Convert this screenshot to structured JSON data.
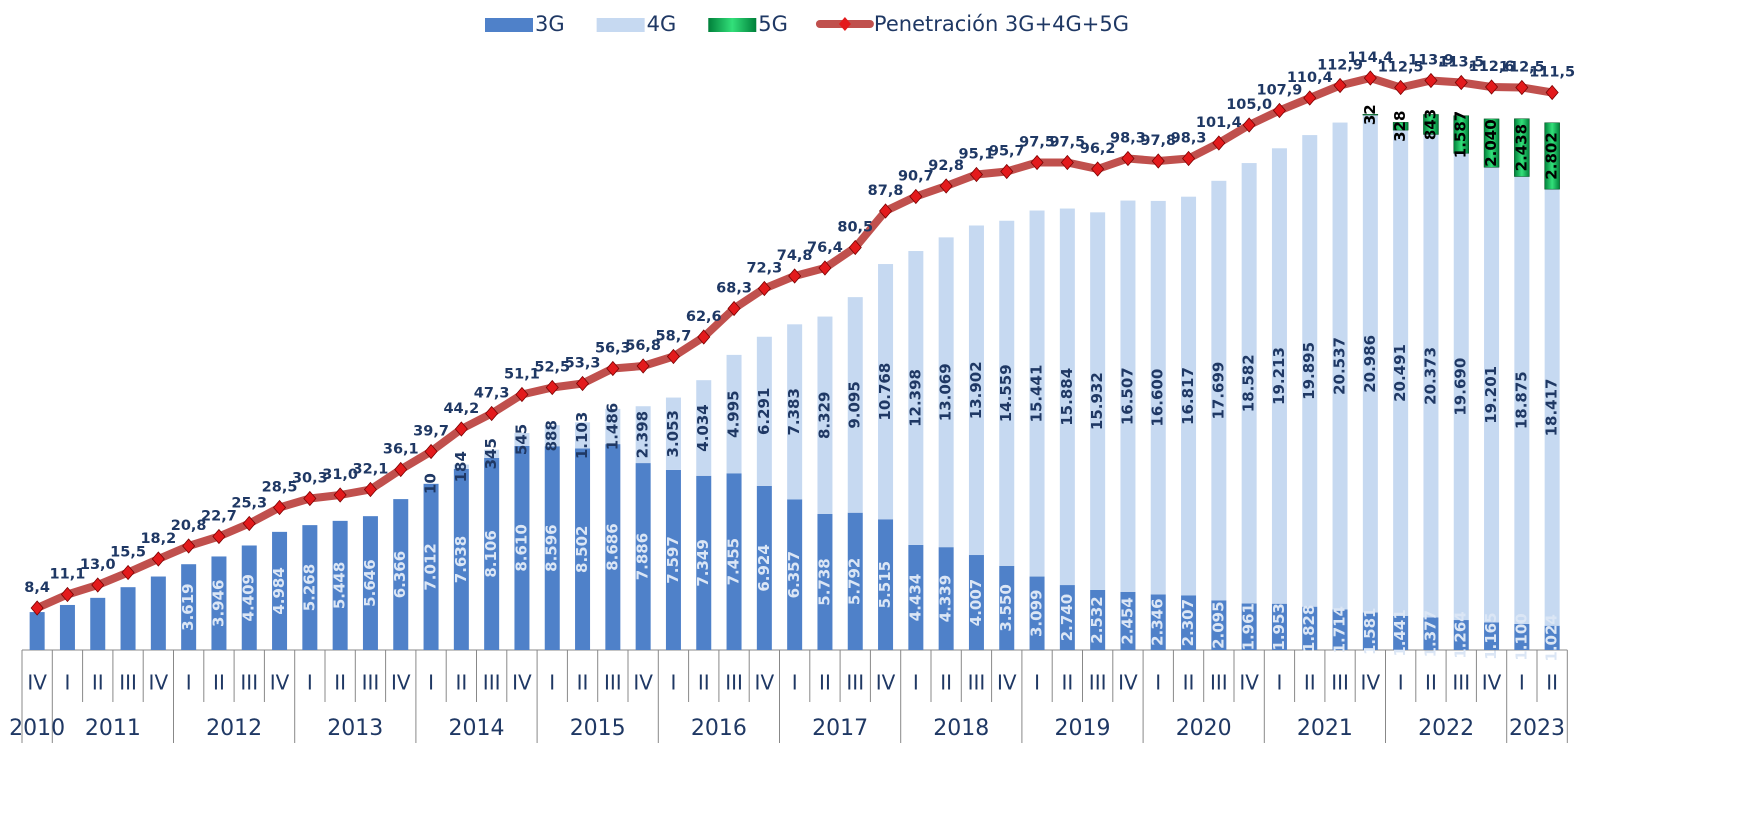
{
  "chart_data": {
    "type": "bar",
    "stacked": true,
    "categories": [
      "IV",
      "I",
      "II",
      "III",
      "IV",
      "I",
      "II",
      "III",
      "IV",
      "I",
      "II",
      "III",
      "IV",
      "I",
      "II",
      "III",
      "IV",
      "I",
      "II",
      "III",
      "IV",
      "I",
      "II",
      "III",
      "IV",
      "I",
      "II",
      "III",
      "IV",
      "I",
      "II",
      "III",
      "IV",
      "I",
      "II",
      "III",
      "IV",
      "I",
      "II",
      "III",
      "IV",
      "I",
      "II",
      "III",
      "IV",
      "I",
      "II",
      "III",
      "IV",
      "I",
      "II"
    ],
    "x_groups": [
      {
        "label": "2010",
        "count": 1
      },
      {
        "label": "2011",
        "count": 4
      },
      {
        "label": "2012",
        "count": 4
      },
      {
        "label": "2013",
        "count": 4
      },
      {
        "label": "2014",
        "count": 4
      },
      {
        "label": "2015",
        "count": 4
      },
      {
        "label": "2016",
        "count": 4
      },
      {
        "label": "2017",
        "count": 4
      },
      {
        "label": "2018",
        "count": 4
      },
      {
        "label": "2019",
        "count": 4
      },
      {
        "label": "2020",
        "count": 4
      },
      {
        "label": "2021",
        "count": 4
      },
      {
        "label": "2022",
        "count": 4
      },
      {
        "label": "2023",
        "count": 2
      }
    ],
    "ylim": [
      0,
      27000
    ],
    "y2lim": [
      0,
      128
    ],
    "legend": "top",
    "series": [
      {
        "name": "3G",
        "color": "#4f81c9",
        "values": [
          1600,
          1900,
          2200,
          2650,
          3100,
          3619,
          3946,
          4409,
          4984,
          5268,
          5448,
          5646,
          6366,
          7012,
          7638,
          8106,
          8610,
          8596,
          8502,
          8686,
          7886,
          7597,
          7349,
          7455,
          6924,
          6357,
          5738,
          5792,
          5515,
          4434,
          4339,
          4007,
          3550,
          3099,
          2740,
          2532,
          2454,
          2346,
          2307,
          2095,
          1961,
          1953,
          1828,
          1714,
          1581,
          1441,
          1377,
          1264,
          1165,
          1100,
          1024
        ],
        "value_labels": [
          null,
          null,
          null,
          null,
          null,
          "3.619",
          "3.946",
          "4.409",
          "4.984",
          "5.268",
          "5.448",
          "5.646",
          "6.366",
          "7.012",
          "7.638",
          "8.106",
          "8.610",
          "8.596",
          "8.502",
          "8.686",
          "7.886",
          "7.597",
          "7.349",
          "7.455",
          "6.924",
          "6.357",
          "5.738",
          "5.792",
          "5.515",
          "4.434",
          "4.339",
          "4.007",
          "3.550",
          "3.099",
          "2.740",
          "2.532",
          "2.454",
          "2.346",
          "2.307",
          "2.095",
          "1.961",
          "1.953",
          "1.828",
          "1.714",
          "1.581",
          "1.441",
          "1.377",
          "1.264",
          "1.165",
          "1.100",
          "1.024"
        ]
      },
      {
        "name": "4G",
        "color": "#c6d9f1",
        "values": [
          null,
          null,
          null,
          null,
          null,
          null,
          null,
          null,
          null,
          null,
          null,
          null,
          null,
          10,
          184,
          345,
          545,
          888,
          1103,
          1486,
          2398,
          3053,
          4034,
          4995,
          6291,
          7383,
          8329,
          9095,
          10768,
          12398,
          13069,
          13902,
          14559,
          15441,
          15884,
          15932,
          16507,
          16600,
          16817,
          17699,
          18582,
          19213,
          19895,
          20537,
          20986,
          20491,
          20373,
          19690,
          19201,
          18875,
          18417
        ],
        "value_labels": [
          null,
          null,
          null,
          null,
          null,
          null,
          null,
          null,
          null,
          null,
          null,
          null,
          null,
          "10",
          "184",
          "345",
          "545",
          "888",
          "1.103",
          "1.486",
          "2.398",
          "3.053",
          "4.034",
          "4.995",
          "6.291",
          "7.383",
          "8.329",
          "9.095",
          "10.768",
          "12.398",
          "13.069",
          "13.902",
          "14.559",
          "15.441",
          "15.884",
          "15.932",
          "16.507",
          "16.600",
          "16.817",
          "17.699",
          "18.582",
          "19.213",
          "19.895",
          "20.537",
          "20.986",
          "20.491",
          "20.373",
          "19.690",
          "19.201",
          "18.875",
          "18.417"
        ]
      },
      {
        "name": "5G",
        "color": "#00b050",
        "values": [
          null,
          null,
          null,
          null,
          null,
          null,
          null,
          null,
          null,
          null,
          null,
          null,
          null,
          null,
          null,
          null,
          null,
          null,
          null,
          null,
          null,
          null,
          null,
          null,
          null,
          null,
          null,
          null,
          null,
          null,
          null,
          null,
          null,
          null,
          null,
          null,
          null,
          null,
          null,
          null,
          null,
          null,
          null,
          null,
          32,
          328,
          843,
          1587,
          2040,
          2438,
          2802
        ],
        "value_labels": [
          null,
          null,
          null,
          null,
          null,
          null,
          null,
          null,
          null,
          null,
          null,
          null,
          null,
          null,
          null,
          null,
          null,
          null,
          null,
          null,
          null,
          null,
          null,
          null,
          null,
          null,
          null,
          null,
          null,
          null,
          null,
          null,
          null,
          null,
          null,
          null,
          null,
          null,
          null,
          null,
          null,
          null,
          null,
          null,
          "32",
          "328",
          "843",
          "1.587",
          "2.040",
          "2.438",
          "2.802"
        ]
      },
      {
        "name": "Penetración 3G+4G+5G",
        "color": "#c0504d",
        "type": "line",
        "axis": "y2",
        "marker_color": "#e31a1c",
        "values": [
          8.4,
          11.1,
          13.0,
          15.5,
          18.2,
          20.8,
          22.7,
          25.3,
          28.5,
          30.3,
          31.0,
          32.1,
          36.1,
          39.7,
          44.2,
          47.3,
          51.1,
          52.5,
          53.3,
          56.3,
          56.8,
          58.7,
          62.6,
          68.3,
          72.3,
          74.8,
          76.4,
          80.5,
          87.8,
          90.7,
          92.8,
          95.1,
          95.7,
          97.5,
          97.5,
          96.2,
          98.3,
          97.8,
          98.3,
          101.4,
          105.0,
          107.9,
          110.4,
          112.9,
          114.4,
          112.5,
          113.9,
          113.5,
          112.6,
          112.5,
          111.5
        ],
        "value_labels": [
          "8,4",
          "11,1",
          "13,0",
          "15,5",
          "18,2",
          "20,8",
          "22,7",
          "25,3",
          "28,5",
          "30,3",
          "31,0",
          "32,1",
          "36,1",
          "39,7",
          "44,2",
          "47,3",
          "51,1",
          "52,5",
          "53,3",
          "56,3",
          "56,8",
          "58,7",
          "62,6",
          "68,3",
          "72,3",
          "74,8",
          "76,4",
          "80,5",
          "87,8",
          "90,7",
          "92,8",
          "95,1",
          "95,7",
          "97,5",
          "97,5",
          "96,2",
          "98,3",
          "97,8",
          "98,3",
          "101,4",
          "105,0",
          "107,9",
          "110,4",
          "112,9",
          "114,4",
          "112,5",
          "113,9",
          "113,5",
          "112,6",
          "112,5",
          "111,5"
        ]
      }
    ]
  }
}
